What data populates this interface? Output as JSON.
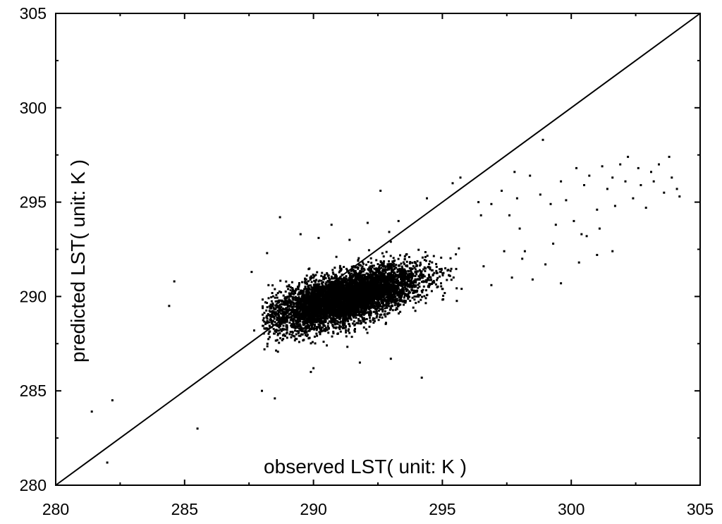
{
  "chart_data": {
    "type": "scatter",
    "title": "",
    "xlabel": "observed LST( unit: K )",
    "ylabel": "predicted LST( unit: K )",
    "xlim": [
      280,
      305
    ],
    "ylim": [
      280,
      305
    ],
    "xticks": [
      "280",
      "285",
      "290",
      "295",
      "300",
      "305"
    ],
    "yticks": [
      "280",
      "285",
      "290",
      "295",
      "300",
      "305"
    ],
    "grid": false,
    "legend": "none",
    "reference_line": {
      "name": "1:1 line",
      "x": [
        280,
        305
      ],
      "y": [
        280,
        305
      ]
    },
    "colors": {
      "points": "#000000",
      "line": "#000000",
      "axes": "#000000"
    },
    "dense_cluster": {
      "description_x_range": [
        288,
        296
      ],
      "description_y_range": [
        286.5,
        293.5
      ],
      "center": [
        291.2,
        289.9
      ],
      "approx_points": 6000,
      "sd_major": 1.55,
      "sd_minor": 0.6,
      "slope": 0.42
    },
    "points": [
      [
        281.4,
        283.9
      ],
      [
        282.2,
        284.5
      ],
      [
        282.0,
        281.2
      ],
      [
        285.5,
        283.0
      ],
      [
        284.4,
        289.5
      ],
      [
        284.6,
        290.8
      ],
      [
        287.6,
        291.3
      ],
      [
        288.2,
        292.3
      ],
      [
        288.7,
        294.2
      ],
      [
        289.5,
        293.3
      ],
      [
        290.7,
        293.8
      ],
      [
        291.4,
        293.0
      ],
      [
        292.1,
        293.9
      ],
      [
        292.6,
        295.6
      ],
      [
        293.0,
        292.9
      ],
      [
        293.3,
        294.0
      ],
      [
        293.0,
        286.7
      ],
      [
        294.2,
        285.7
      ],
      [
        294.4,
        295.2
      ],
      [
        295.4,
        296.0
      ],
      [
        295.7,
        296.3
      ],
      [
        296.4,
        295.0
      ],
      [
        296.9,
        294.9
      ],
      [
        296.5,
        294.3
      ],
      [
        297.3,
        295.6
      ],
      [
        297.6,
        294.3
      ],
      [
        297.8,
        296.6
      ],
      [
        297.9,
        295.2
      ],
      [
        298.0,
        293.6
      ],
      [
        298.2,
        292.4
      ],
      [
        298.4,
        296.4
      ],
      [
        298.8,
        295.4
      ],
      [
        298.9,
        298.3
      ],
      [
        299.2,
        294.9
      ],
      [
        299.4,
        293.8
      ],
      [
        299.6,
        296.1
      ],
      [
        299.8,
        295.1
      ],
      [
        300.1,
        294.0
      ],
      [
        300.2,
        296.8
      ],
      [
        300.4,
        293.3
      ],
      [
        300.5,
        295.9
      ],
      [
        300.7,
        296.4
      ],
      [
        301.0,
        294.6
      ],
      [
        301.2,
        296.9
      ],
      [
        301.4,
        295.7
      ],
      [
        301.6,
        296.3
      ],
      [
        301.7,
        294.8
      ],
      [
        301.9,
        297.0
      ],
      [
        302.1,
        296.1
      ],
      [
        302.2,
        297.4
      ],
      [
        302.4,
        295.2
      ],
      [
        302.6,
        296.8
      ],
      [
        302.7,
        295.9
      ],
      [
        302.9,
        294.7
      ],
      [
        303.1,
        296.6
      ],
      [
        303.2,
        296.1
      ],
      [
        303.4,
        297.0
      ],
      [
        303.6,
        295.5
      ],
      [
        303.8,
        297.4
      ],
      [
        303.9,
        296.3
      ],
      [
        304.1,
        295.7
      ],
      [
        304.2,
        295.3
      ],
      [
        298.5,
        290.9
      ],
      [
        299.0,
        291.7
      ],
      [
        299.6,
        290.7
      ],
      [
        300.3,
        291.8
      ],
      [
        301.0,
        292.2
      ],
      [
        301.6,
        292.4
      ],
      [
        296.6,
        291.6
      ],
      [
        296.9,
        290.6
      ],
      [
        297.4,
        292.4
      ],
      [
        297.7,
        291.0
      ],
      [
        298.1,
        292.0
      ],
      [
        299.3,
        292.8
      ],
      [
        300.6,
        293.2
      ],
      [
        301.1,
        293.6
      ],
      [
        288.0,
        285.0
      ],
      [
        288.5,
        284.6
      ],
      [
        290.0,
        286.2
      ],
      [
        291.8,
        286.5
      ],
      [
        289.9,
        286.0
      ],
      [
        288.1,
        287.2
      ],
      [
        287.7,
        288.2
      ],
      [
        290.2,
        293.1
      ]
    ]
  }
}
